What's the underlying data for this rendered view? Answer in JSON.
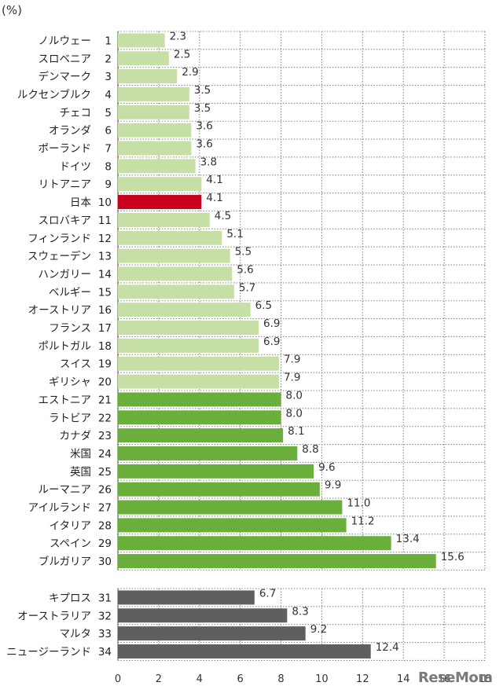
{
  "chart_data": {
    "type": "bar",
    "orientation": "horizontal",
    "unit_label": "(%)",
    "xlim": [
      0,
      18
    ],
    "x_ticks": [
      "0",
      "2",
      "4",
      "6",
      "8",
      "10",
      "12",
      "14",
      "16",
      "18"
    ],
    "grid": true,
    "colors": {
      "light": "#c5dfa5",
      "dark": "#6aae3b",
      "highlight": "#c8001e",
      "gray": "#5f5f5f",
      "grid": "#8a8a8a"
    },
    "groups": [
      {
        "items": [
          {
            "name": "ノルウェー",
            "rank": "1",
            "value": 2.3,
            "label": "2.3",
            "color": "light"
          },
          {
            "name": "スロベニア",
            "rank": "2",
            "value": 2.5,
            "label": "2.5",
            "color": "light"
          },
          {
            "name": "デンマーク",
            "rank": "3",
            "value": 2.9,
            "label": "2.9",
            "color": "light"
          },
          {
            "name": "ルクセンブルク",
            "rank": "4",
            "value": 3.5,
            "label": "3.5",
            "color": "light"
          },
          {
            "name": "チェコ",
            "rank": "5",
            "value": 3.5,
            "label": "3.5",
            "color": "light"
          },
          {
            "name": "オランダ",
            "rank": "6",
            "value": 3.6,
            "label": "3.6",
            "color": "light"
          },
          {
            "name": "ポーランド",
            "rank": "7",
            "value": 3.6,
            "label": "3.6",
            "color": "light"
          },
          {
            "name": "ドイツ",
            "rank": "8",
            "value": 3.8,
            "label": "3.8",
            "color": "light"
          },
          {
            "name": "リトアニア",
            "rank": "9",
            "value": 4.1,
            "label": "4.1",
            "color": "light"
          },
          {
            "name": "日本",
            "rank": "10",
            "value": 4.1,
            "label": "4.1",
            "color": "highlight"
          },
          {
            "name": "スロバキア",
            "rank": "11",
            "value": 4.5,
            "label": "4.5",
            "color": "light"
          },
          {
            "name": "フィンランド",
            "rank": "12",
            "value": 5.1,
            "label": "5.1",
            "color": "light"
          },
          {
            "name": "スウェーデン",
            "rank": "13",
            "value": 5.5,
            "label": "5.5",
            "color": "light"
          },
          {
            "name": "ハンガリー",
            "rank": "14",
            "value": 5.6,
            "label": "5.6",
            "color": "light"
          },
          {
            "name": "ベルギー",
            "rank": "15",
            "value": 5.7,
            "label": "5.7",
            "color": "light"
          },
          {
            "name": "オーストリア",
            "rank": "16",
            "value": 6.5,
            "label": "6.5",
            "color": "light"
          },
          {
            "name": "フランス",
            "rank": "17",
            "value": 6.9,
            "label": "6.9",
            "color": "light"
          },
          {
            "name": "ポルトガル",
            "rank": "18",
            "value": 6.9,
            "label": "6.9",
            "color": "light"
          },
          {
            "name": "スイス",
            "rank": "19",
            "value": 7.9,
            "label": "7.9",
            "color": "light"
          },
          {
            "name": "ギリシャ",
            "rank": "20",
            "value": 7.9,
            "label": "7.9",
            "color": "light"
          },
          {
            "name": "エストニア",
            "rank": "21",
            "value": 8.0,
            "label": "8.0",
            "color": "dark"
          },
          {
            "name": "ラトビア",
            "rank": "22",
            "value": 8.0,
            "label": "8.0",
            "color": "dark"
          },
          {
            "name": "カナダ",
            "rank": "23",
            "value": 8.1,
            "label": "8.1",
            "color": "dark"
          },
          {
            "name": "米国",
            "rank": "24",
            "value": 8.8,
            "label": "8.8",
            "color": "dark"
          },
          {
            "name": "英国",
            "rank": "25",
            "value": 9.6,
            "label": "9.6",
            "color": "dark"
          },
          {
            "name": "ルーマニア",
            "rank": "26",
            "value": 9.9,
            "label": "9.9",
            "color": "dark"
          },
          {
            "name": "アイルランド",
            "rank": "27",
            "value": 11.0,
            "label": "11.0",
            "color": "dark"
          },
          {
            "name": "イタリア",
            "rank": "28",
            "value": 11.2,
            "label": "11.2",
            "color": "dark"
          },
          {
            "name": "スペイン",
            "rank": "29",
            "value": 13.4,
            "label": "13.4",
            "color": "dark"
          },
          {
            "name": "ブルガリア",
            "rank": "30",
            "value": 15.6,
            "label": "15.6",
            "color": "dark"
          }
        ]
      },
      {
        "items": [
          {
            "name": "キプロス",
            "rank": "31",
            "value": 6.7,
            "label": "6.7",
            "color": "gray"
          },
          {
            "name": "オーストラリア",
            "rank": "32",
            "value": 8.3,
            "label": "8.3",
            "color": "gray"
          },
          {
            "name": "マルタ",
            "rank": "33",
            "value": 9.2,
            "label": "9.2",
            "color": "gray"
          },
          {
            "name": "ニュージーランド",
            "rank": "34",
            "value": 12.4,
            "label": "12.4",
            "color": "gray"
          }
        ]
      }
    ]
  },
  "watermark": "ReseMom"
}
